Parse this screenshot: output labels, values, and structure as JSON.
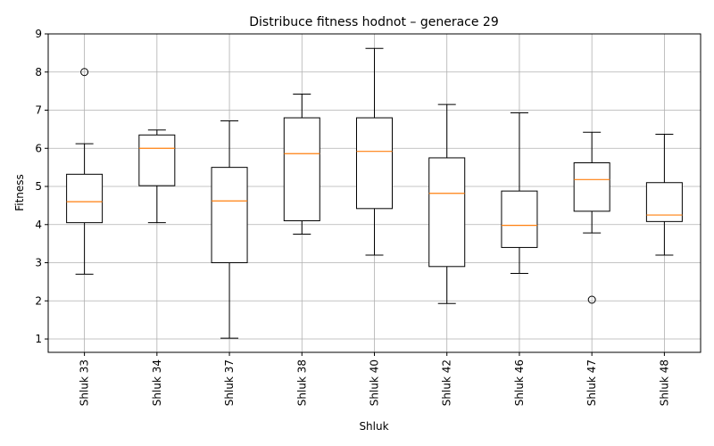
{
  "chart_data": {
    "type": "box",
    "title": "Distribuce fitness hodnot – generace 29",
    "xlabel": "Shluk",
    "ylabel": "Fitness",
    "ylim": [
      0.65,
      9.0
    ],
    "yticks": [
      1,
      2,
      3,
      4,
      5,
      6,
      7,
      8,
      9
    ],
    "grid": true,
    "colors": {
      "box": "#000000",
      "median": "#ff7f0e",
      "grid": "#b0b0b0"
    },
    "categories": [
      "Shluk 33",
      "Shluk 34",
      "Shluk 37",
      "Shluk 38",
      "Shluk 40",
      "Shluk 42",
      "Shluk 46",
      "Shluk 47",
      "Shluk 48"
    ],
    "boxes": [
      {
        "whisker_low": 2.7,
        "q1": 4.05,
        "median": 4.6,
        "q3": 5.32,
        "whisker_high": 6.12,
        "outliers": [
          8.0
        ]
      },
      {
        "whisker_low": 4.05,
        "q1": 5.02,
        "median": 6.0,
        "q3": 6.35,
        "whisker_high": 6.48,
        "outliers": []
      },
      {
        "whisker_low": 1.02,
        "q1": 3.0,
        "median": 4.62,
        "q3": 5.5,
        "whisker_high": 6.72,
        "outliers": []
      },
      {
        "whisker_low": 3.75,
        "q1": 4.1,
        "median": 5.86,
        "q3": 6.8,
        "whisker_high": 7.42,
        "outliers": []
      },
      {
        "whisker_low": 3.2,
        "q1": 4.42,
        "median": 5.92,
        "q3": 6.8,
        "whisker_high": 8.62,
        "outliers": []
      },
      {
        "whisker_low": 1.93,
        "q1": 2.9,
        "median": 4.82,
        "q3": 5.75,
        "whisker_high": 7.15,
        "outliers": []
      },
      {
        "whisker_low": 2.72,
        "q1": 3.4,
        "median": 3.98,
        "q3": 4.88,
        "whisker_high": 6.93,
        "outliers": []
      },
      {
        "whisker_low": 3.78,
        "q1": 4.35,
        "median": 5.18,
        "q3": 5.62,
        "whisker_high": 6.42,
        "outliers": [
          2.03
        ]
      },
      {
        "whisker_low": 3.2,
        "q1": 4.08,
        "median": 4.25,
        "q3": 5.1,
        "whisker_high": 6.37,
        "outliers": []
      }
    ]
  }
}
